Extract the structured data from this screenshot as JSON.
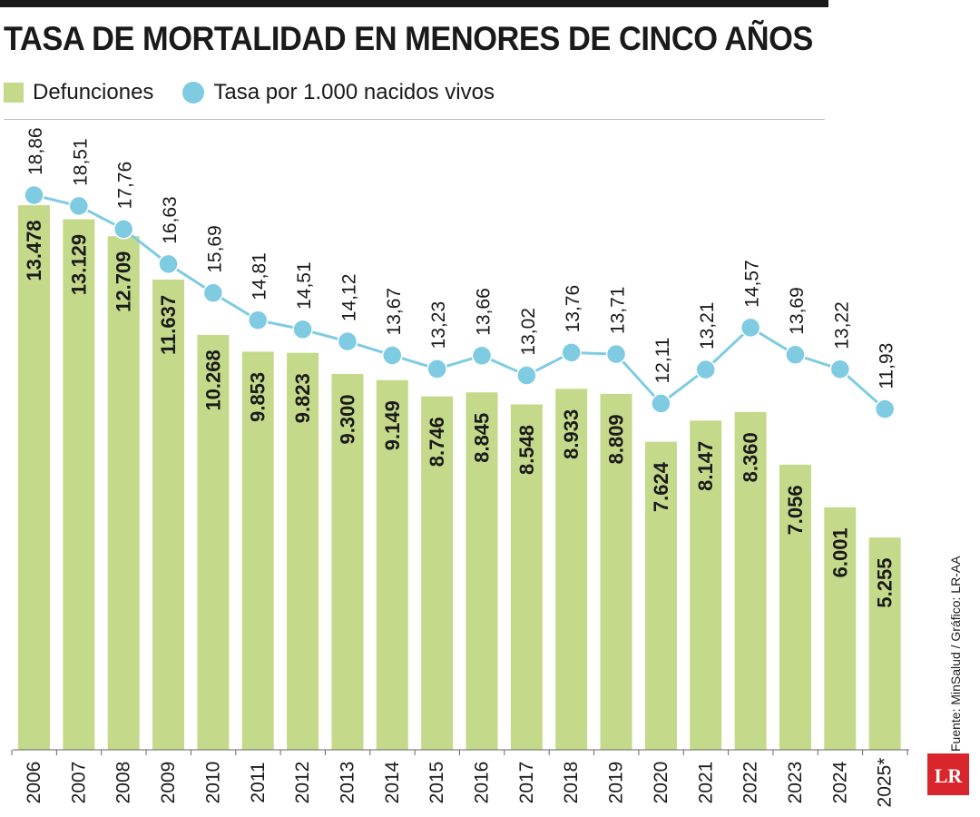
{
  "title": "TASA DE MORTALIDAD EN MENORES DE CINCO AÑOS",
  "legend": {
    "bars": "Defunciones",
    "line": "Tasa por 1.000 nacidos vivos"
  },
  "source": "Fuente: MinSalud / Gráfico: LR-AA",
  "logo": {
    "text": "LR"
  },
  "colors": {
    "bar": "#c5d98a",
    "line": "#7fcbe2",
    "text": "#1a1a1a",
    "logo": "#d9262c"
  },
  "chart_data": {
    "type": "bar",
    "categories": [
      "2006",
      "2007",
      "2008",
      "2009",
      "2010",
      "2011",
      "2012",
      "2013",
      "2014",
      "2015",
      "2016",
      "2017",
      "2018",
      "2019",
      "2020",
      "2021",
      "2022",
      "2023",
      "2024",
      "2025*"
    ],
    "series": [
      {
        "name": "Defunciones",
        "type": "bar",
        "values": [
          13478,
          13129,
          12709,
          11637,
          10268,
          9853,
          9823,
          9300,
          9149,
          8746,
          8845,
          8548,
          8933,
          8809,
          7624,
          8147,
          8360,
          7056,
          6001,
          5255
        ],
        "labels": [
          "13.478",
          "13.129",
          "12.709",
          "11.637",
          "10.268",
          "9.853",
          "9.823",
          "9.300",
          "9.149",
          "8.746",
          "8.845",
          "8.548",
          "8.933",
          "8.809",
          "7.624",
          "8.147",
          "8.360",
          "7.056",
          "6.001",
          "5.255"
        ]
      },
      {
        "name": "Tasa por 1.000 nacidos vivos",
        "type": "line",
        "values": [
          18.86,
          18.51,
          17.76,
          16.63,
          15.69,
          14.81,
          14.51,
          14.12,
          13.67,
          13.23,
          13.66,
          13.02,
          13.76,
          13.71,
          12.11,
          13.21,
          14.57,
          13.69,
          13.22,
          11.93
        ],
        "labels": [
          "18,86",
          "18,51",
          "17,76",
          "16,63",
          "15,69",
          "14,81",
          "14,51",
          "14,12",
          "13,67",
          "13,23",
          "13,66",
          "13,02",
          "13,76",
          "13,71",
          "12,11",
          "13,21",
          "14,57",
          "13,69",
          "13,22",
          "11,93"
        ]
      }
    ]
  }
}
